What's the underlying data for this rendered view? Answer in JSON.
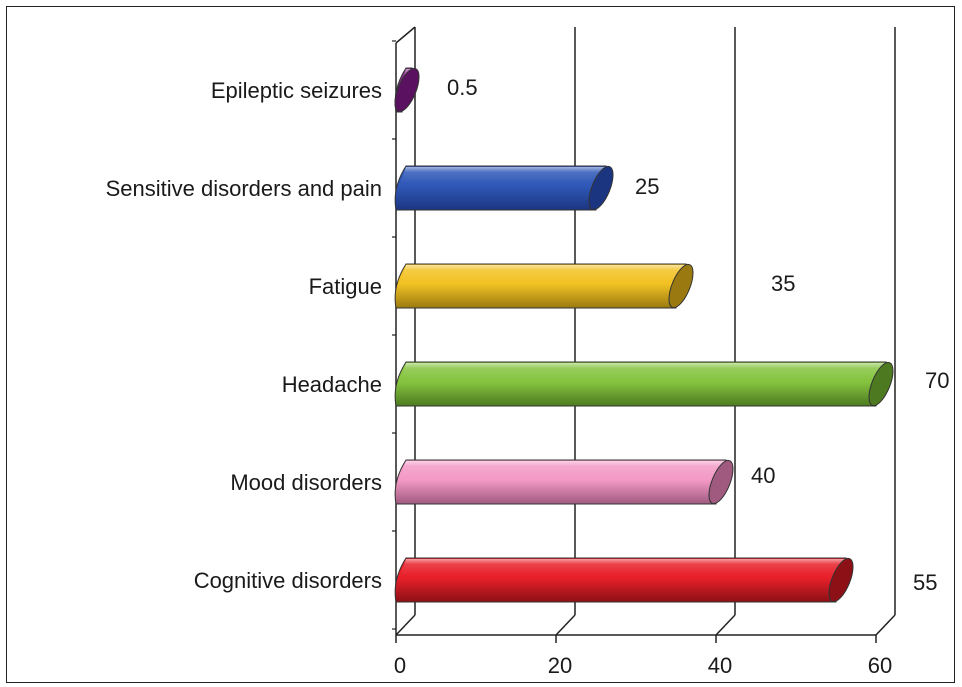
{
  "chart_data": {
    "type": "bar",
    "orientation": "horizontal",
    "style": "3d-cylinder",
    "categories": [
      "Epileptic seizures",
      "Sensitive disorders and pain",
      "Fatigue",
      "Headache",
      "Mood disorders",
      "Cognitive disorders"
    ],
    "values": [
      0.5,
      25,
      35,
      70,
      40,
      55
    ],
    "bar_lengths": [
      0.5,
      25,
      35,
      60,
      40,
      55
    ],
    "data_labels": [
      "0.5",
      "25",
      "35",
      "70",
      "40",
      "55"
    ],
    "colors": [
      "#8a2a8c",
      "#2f58b8",
      "#f2c224",
      "#86c440",
      "#f39ac6",
      "#e8202a"
    ],
    "dark_colors": [
      "#5a1260",
      "#1c3580",
      "#9a7a10",
      "#4d7a20",
      "#a05a80",
      "#8c1016"
    ],
    "title": "",
    "xlabel": "",
    "ylabel": "",
    "xlim": [
      0,
      60
    ],
    "xticks": [
      0,
      20,
      40,
      60
    ],
    "tick_labels": [
      "0",
      "20",
      "40",
      "60"
    ],
    "grid": true
  }
}
